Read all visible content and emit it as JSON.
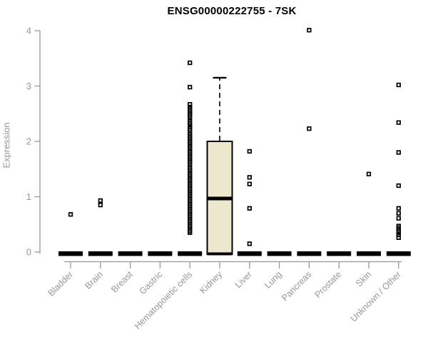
{
  "chart_data": {
    "type": "boxplot",
    "title": "ENSG00000222755 - 7SK",
    "ylabel": "Expression",
    "xlabel": "",
    "ylim": [
      0,
      4
    ],
    "yticks": [
      0,
      1,
      2,
      3,
      4
    ],
    "grid": false,
    "legend": "none",
    "categories": [
      "Bladder",
      "Brain",
      "Breast",
      "Gastric",
      "Hematopoietic cells",
      "Kidney",
      "Liver",
      "Lung",
      "Pancreas",
      "Prostate",
      "Skin",
      "Unknown / Other"
    ],
    "series": [
      {
        "name": "Bladder",
        "slug": "bladder",
        "box": {
          "q1": 0,
          "median": 0,
          "q3": 0,
          "whisker_low": 0,
          "whisker_high": 0
        },
        "outliers": [
          0.68
        ]
      },
      {
        "name": "Brain",
        "slug": "brain",
        "box": {
          "q1": 0,
          "median": 0,
          "q3": 0,
          "whisker_low": 0,
          "whisker_high": 0
        },
        "outliers": [
          0.93,
          0.85
        ]
      },
      {
        "name": "Breast",
        "slug": "breast",
        "box": {
          "q1": 0,
          "median": 0,
          "q3": 0,
          "whisker_low": 0,
          "whisker_high": 0
        },
        "outliers": []
      },
      {
        "name": "Gastric",
        "slug": "gastric",
        "box": {
          "q1": 0,
          "median": 0,
          "q3": 0,
          "whisker_low": 0,
          "whisker_high": 0
        },
        "outliers": []
      },
      {
        "name": "Hematopoietic cells",
        "slug": "hematopoietic-cells",
        "box": {
          "q1": 0,
          "median": 0,
          "q3": 0,
          "whisker_low": 0,
          "whisker_high": 0
        },
        "outliers": [
          3.42,
          2.98,
          2.67,
          2.62,
          2.59,
          2.56,
          2.53,
          2.5,
          2.47,
          2.44,
          2.36,
          2.33,
          2.3,
          2.26,
          2.23,
          2.2,
          2.13,
          2.1,
          2.07,
          2.04,
          2.01,
          1.98,
          1.95,
          1.92,
          1.89,
          1.86,
          1.83,
          1.8,
          1.77,
          1.74,
          1.71,
          1.68,
          1.65,
          1.62,
          1.59,
          1.52,
          1.49,
          1.46,
          1.43,
          1.4,
          1.37,
          1.34,
          1.31,
          1.28,
          1.25,
          1.22,
          1.19,
          1.16,
          1.13,
          1.1,
          1.07,
          1.04,
          1.01,
          0.98,
          0.95,
          0.92,
          0.89,
          0.86,
          0.83,
          0.8,
          0.77,
          0.74,
          0.71,
          0.68,
          0.65,
          0.62,
          0.59,
          0.56,
          0.53,
          0.5,
          0.47,
          0.44,
          0.41,
          0.38,
          0.35
        ]
      },
      {
        "name": "Kidney",
        "slug": "kidney",
        "box": {
          "q1": 0,
          "median": 1.0,
          "q3": 2.0,
          "whisker_low": 0,
          "whisker_high": 3.15
        },
        "outliers": []
      },
      {
        "name": "Liver",
        "slug": "liver",
        "box": {
          "q1": 0,
          "median": 0,
          "q3": 0,
          "whisker_low": 0,
          "whisker_high": 0
        },
        "outliers": [
          1.82,
          1.35,
          1.23,
          0.79,
          0.15
        ]
      },
      {
        "name": "Lung",
        "slug": "lung",
        "box": {
          "q1": 0,
          "median": 0,
          "q3": 0,
          "whisker_low": 0,
          "whisker_high": 0
        },
        "outliers": []
      },
      {
        "name": "Pancreas",
        "slug": "pancreas",
        "box": {
          "q1": 0,
          "median": 0,
          "q3": 0,
          "whisker_low": 0,
          "whisker_high": 0
        },
        "outliers": [
          4.01,
          2.23
        ]
      },
      {
        "name": "Prostate",
        "slug": "prostate",
        "box": {
          "q1": 0,
          "median": 0,
          "q3": 0,
          "whisker_low": 0,
          "whisker_high": 0
        },
        "outliers": []
      },
      {
        "name": "Skin",
        "slug": "skin",
        "box": {
          "q1": 0,
          "median": 0,
          "q3": 0,
          "whisker_low": 0,
          "whisker_high": 0
        },
        "outliers": [
          1.41
        ]
      },
      {
        "name": "Unknown / Other",
        "slug": "unknown-other",
        "box": {
          "q1": 0,
          "median": 0,
          "q3": 0,
          "whisker_low": 0,
          "whisker_high": 0
        },
        "outliers": [
          3.02,
          2.34,
          1.8,
          1.2,
          0.79,
          0.7,
          0.61,
          0.47,
          0.44,
          0.41,
          0.38,
          0.35,
          0.31,
          0.26
        ]
      }
    ],
    "colors": {
      "box_fill": "#ECE7CD",
      "box_border": "#000000",
      "median": "#000000",
      "collapsed_bar": "#000000",
      "outlier": "#000000",
      "axis": "#979797",
      "tick_label": "#979797",
      "title": "#000000"
    }
  }
}
